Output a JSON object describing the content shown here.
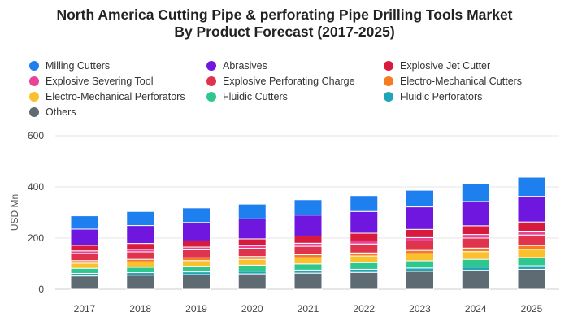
{
  "chart_data": {
    "type": "bar",
    "stacked": true,
    "title": "North America Cutting Pipe & perforating Pipe Drilling Tools Market By Product Forecast (2017-2025)",
    "title_lines": [
      "North America Cutting Pipe & perforating Pipe Drilling Tools Market",
      "By Product Forecast (2017-2025)"
    ],
    "xlabel": "",
    "ylabel": "USD Mn",
    "ylim": [
      0,
      600
    ],
    "yticks": [
      "0",
      "200",
      "400",
      "600"
    ],
    "legend_position": "top",
    "categories": [
      "2017",
      "2018",
      "2019",
      "2020",
      "2021",
      "2022",
      "2023",
      "2024",
      "2025"
    ],
    "series": [
      {
        "name": "Others",
        "color": "#5f6b73",
        "values": [
          52,
          55,
          57,
          60,
          63,
          66,
          70,
          74,
          78
        ]
      },
      {
        "name": "Fluidic Perforators",
        "color": "#1fa5b5",
        "values": [
          10,
          10,
          11,
          11,
          12,
          12,
          13,
          13,
          14
        ]
      },
      {
        "name": "Fluidic Cutters",
        "color": "#2ec88f",
        "values": [
          20,
          21,
          22,
          23,
          24,
          26,
          28,
          30,
          32
        ]
      },
      {
        "name": "Electro-Mechanical Perforators",
        "color": "#fbc02d",
        "values": [
          20,
          21,
          22,
          23,
          24,
          26,
          28,
          30,
          32
        ]
      },
      {
        "name": "Electro-Mechanical Cutters",
        "color": "#f57c20",
        "values": [
          10,
          10,
          11,
          11,
          12,
          12,
          13,
          14,
          15
        ]
      },
      {
        "name": "Explosive Perforating Charge",
        "color": "#e0344e",
        "values": [
          28,
          29,
          31,
          32,
          33,
          35,
          37,
          39,
          41
        ]
      },
      {
        "name": "Explosive Severing Tool",
        "color": "#e64597",
        "values": [
          10,
          10,
          11,
          11,
          12,
          12,
          13,
          14,
          15
        ]
      },
      {
        "name": "Explosive Jet Cutter",
        "color": "#d81b3c",
        "values": [
          22,
          23,
          24,
          26,
          28,
          30,
          32,
          34,
          36
        ]
      },
      {
        "name": "Abrasives",
        "color": "#6f17de",
        "values": [
          63,
          70,
          72,
          78,
          82,
          85,
          88,
          95,
          100
        ]
      },
      {
        "name": "Milling Cutters",
        "color": "#1e7fef",
        "values": [
          52,
          55,
          57,
          58,
          60,
          62,
          65,
          69,
          75
        ]
      }
    ],
    "legend_order": [
      "Milling Cutters",
      "Abrasives",
      "Explosive Jet Cutter",
      "Explosive Severing Tool",
      "Explosive Perforating Charge",
      "Electro-Mechanical Cutters",
      "Electro-Mechanical Perforators",
      "Fluidic Cutters",
      "Fluidic Perforators",
      "Others"
    ]
  }
}
